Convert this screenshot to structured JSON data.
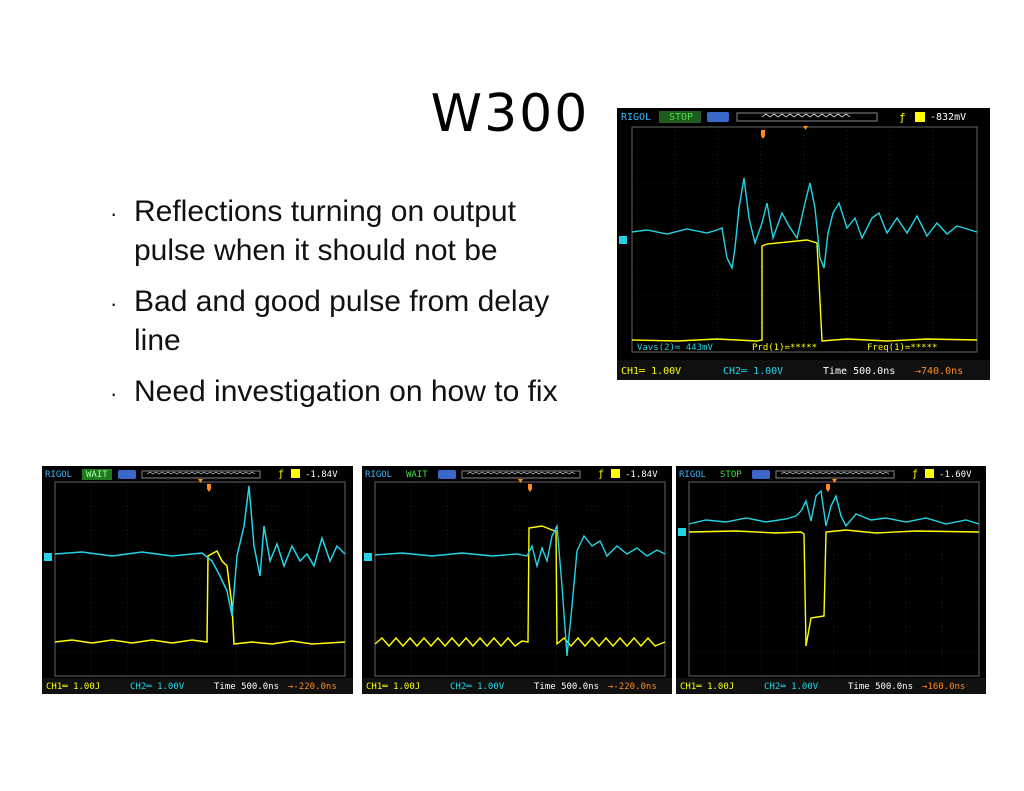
{
  "slide": {
    "title": "W300",
    "bullets": [
      "Reflections turning on output pulse when it should not be",
      "Bad and good pulse from delay line",
      "Need investigation on how to fix"
    ]
  },
  "scopes": [
    {
      "brand": "RIGOL",
      "status": "STOP",
      "trig_level": "-832mV",
      "ch1": "CH1═ 1.00V",
      "ch2": "CH2═ 1.00V",
      "time": "Time 500.0ns",
      "offset": "→740.0ns",
      "meas": [
        "Vavs(2)= 443mV",
        "Prd(1)=*****",
        "Freq(1)=*****"
      ]
    },
    {
      "brand": "RIGOL",
      "status": "WAIT",
      "trig_level": "-1.84V",
      "ch1": "CH1═ 1.00J",
      "ch2": "CH2═ 1.00V",
      "time": "Time 500.0ns",
      "offset": "→-220.0ns"
    },
    {
      "brand": "RIGOL",
      "status": "WAIT",
      "trig_level": "-1.84V",
      "ch1": "CH1═ 1.00J",
      "ch2": "CH2═ 1.00V",
      "time": "Time 500.0ns",
      "offset": "→-220.0ns"
    },
    {
      "brand": "RIGOL",
      "status": "STOP",
      "trig_level": "-1.60V",
      "ch1": "CH1═ 1.00J",
      "ch2": "CH2═ 1.00V",
      "time": "Time 500.0ns",
      "offset": "→160.0ns"
    }
  ],
  "colors": {
    "ch1": "#ffff00",
    "ch2": "#22d4e6",
    "trigger": "#ff8c1a",
    "screen": "#000000"
  }
}
